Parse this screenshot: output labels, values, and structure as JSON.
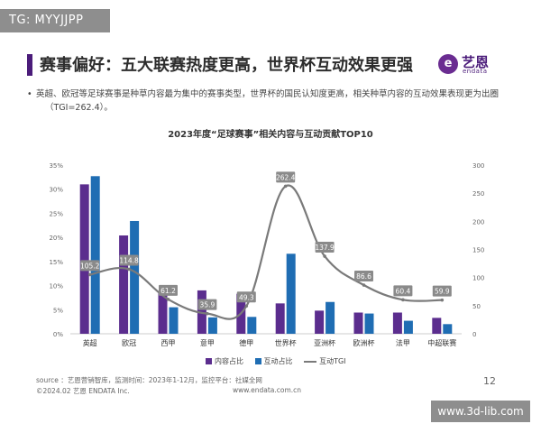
{
  "watermarks": {
    "top_left": "TG: MYYJJPP",
    "bottom_right": "www.3d-lib.com"
  },
  "header": {
    "title": "赛事偏好：五大联赛热度更高，世界杯互动效果更强"
  },
  "logo": {
    "cn": "艺恩",
    "en": "endata",
    "mark": "e"
  },
  "bullet": {
    "line1": "英超、欧冠等足球赛事是种草内容最为集中的赛事类型，世界杯的国民认知度更高，相关种草内容的互动效果表现更为出圈",
    "line2": "（TGI=262.4）。"
  },
  "chart_data": {
    "type": "bar",
    "title": "2023年度“足球赛事”相关内容与互动贡献TOP10",
    "categories": [
      "英超",
      "欧冠",
      "西甲",
      "意甲",
      "德甲",
      "世界杯",
      "亚洲杯",
      "欧洲杯",
      "法甲",
      "中超联赛"
    ],
    "series": [
      {
        "name": "内容占比",
        "axis": "left",
        "values": [
          31.0,
          20.4,
          8.6,
          9.0,
          8.3,
          6.3,
          4.8,
          4.4,
          4.4,
          3.3
        ]
      },
      {
        "name": "互动占比",
        "axis": "left",
        "values": [
          32.7,
          23.4,
          5.5,
          3.4,
          3.5,
          16.6,
          6.6,
          4.2,
          2.7,
          2.0
        ]
      },
      {
        "name": "互动TGI",
        "axis": "right",
        "type": "line",
        "values": [
          105.2,
          114.8,
          61.2,
          35.9,
          49.3,
          262.4,
          137.9,
          86.6,
          60.4,
          59.9
        ]
      }
    ],
    "y_left": {
      "min": 0,
      "max": 35,
      "ticks": [
        "0%",
        "5%",
        "10%",
        "15%",
        "20%",
        "25%",
        "30%",
        "35%"
      ]
    },
    "y_right": {
      "min": 0,
      "max": 300,
      "ticks": [
        "0",
        "50",
        "100",
        "150",
        "200",
        "250",
        "300"
      ]
    },
    "grid": false,
    "legend_position": "bottom",
    "colors": {
      "content": "#5b2d8e",
      "interaction": "#1f6db3",
      "tgi": "#7a7a7a",
      "label_bg": "#8a8a8a"
    }
  },
  "footer": {
    "source": "source ：艺恩营销智库，监测时间：2023年1-12月，监控平台：社媒全网",
    "copyright": "©2024.02  艺恩 ENDATA Inc.",
    "url": "www.endata.com.cn",
    "page": "12"
  }
}
